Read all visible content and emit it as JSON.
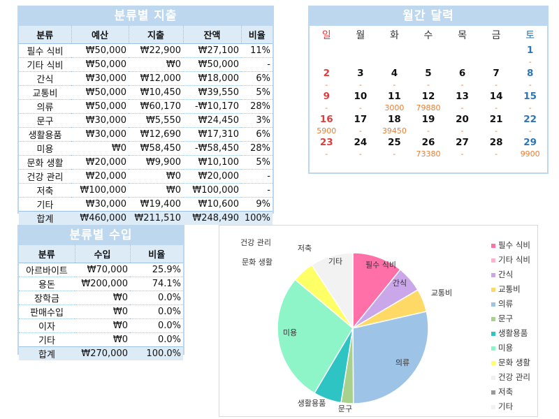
{
  "expense": {
    "title": "분류별 지출",
    "headers": [
      "분류",
      "예산",
      "지출",
      "잔액",
      "비율"
    ],
    "rows": [
      [
        "필수 식비",
        "₩50,000",
        "₩22,900",
        "₩27,100",
        "11%"
      ],
      [
        "기타 식비",
        "₩50,000",
        "₩0",
        "₩50,000",
        "-"
      ],
      [
        "간식",
        "₩30,000",
        "₩12,000",
        "₩18,000",
        "6%"
      ],
      [
        "교통비",
        "₩50,000",
        "₩10,450",
        "₩39,550",
        "5%"
      ],
      [
        "의류",
        "₩50,000",
        "₩60,170",
        "-₩10,170",
        "28%"
      ],
      [
        "문구",
        "₩30,000",
        "₩5,550",
        "₩24,450",
        "3%"
      ],
      [
        "생활용품",
        "₩30,000",
        "₩12,690",
        "₩17,310",
        "6%"
      ],
      [
        "미용",
        "₩0",
        "₩58,450",
        "-₩58,450",
        "28%"
      ],
      [
        "문화 생활",
        "₩20,000",
        "₩9,900",
        "₩10,100",
        "5%"
      ],
      [
        "건강 관리",
        "₩20,000",
        "₩0",
        "₩20,000",
        "-"
      ],
      [
        "저축",
        "₩100,000",
        "₩0",
        "₩100,000",
        "-"
      ],
      [
        "기타",
        "₩30,000",
        "₩19,400",
        "₩10,600",
        "9%"
      ]
    ],
    "total": [
      "합계",
      "₩460,000",
      "₩211,510",
      "₩248,490",
      "100%"
    ]
  },
  "income": {
    "title": "분류별 수입",
    "headers": [
      "분류",
      "수입",
      "비율"
    ],
    "rows": [
      [
        "아르바이트",
        "₩70,000",
        "25.9%"
      ],
      [
        "용돈",
        "₩200,000",
        "74.1%"
      ],
      [
        "장학금",
        "₩0",
        "0.0%"
      ],
      [
        "판매수입",
        "₩0",
        "0.0%"
      ],
      [
        "이자",
        "₩0",
        "0.0%"
      ],
      [
        "기타",
        "₩0",
        "0.0%"
      ]
    ],
    "total": [
      "합계",
      "₩270,000",
      "100.0%"
    ]
  },
  "calendar": {
    "title": "월간 달력",
    "weekdays": [
      "일",
      "월",
      "화",
      "수",
      "목",
      "금",
      "토"
    ],
    "weeks": [
      {
        "days": [
          "",
          "",
          "",
          "",
          "",
          "",
          "1"
        ],
        "amounts": [
          "",
          "",
          "",
          "",
          "",
          "",
          "-"
        ]
      },
      {
        "days": [
          "2",
          "3",
          "4",
          "5",
          "6",
          "7",
          "8"
        ],
        "amounts": [
          "-",
          "-",
          "-",
          "-",
          "-",
          "-",
          "-"
        ]
      },
      {
        "days": [
          "9",
          "10",
          "11",
          "12",
          "13",
          "14",
          "15"
        ],
        "amounts": [
          "-",
          "-",
          "3000",
          "79880",
          "-",
          "-",
          "-"
        ]
      },
      {
        "days": [
          "16",
          "17",
          "18",
          "19",
          "20",
          "21",
          "22"
        ],
        "amounts": [
          "5900",
          "-",
          "39450",
          "-",
          "-",
          "-",
          "-"
        ]
      },
      {
        "days": [
          "23",
          "24",
          "25",
          "26",
          "27",
          "28",
          "29"
        ],
        "amounts": [
          "-",
          "-",
          "-",
          "73380",
          "-",
          "-",
          "9900"
        ]
      }
    ]
  },
  "chart_data": {
    "type": "pie",
    "categories": [
      "필수 식비",
      "기타 식비",
      "간식",
      "교통비",
      "의류",
      "문구",
      "생활용품",
      "미용",
      "문화 생활",
      "건강 관리",
      "저축",
      "기타"
    ],
    "values": [
      22900,
      0,
      12000,
      10450,
      60170,
      5550,
      12690,
      58450,
      9900,
      0,
      0,
      19400
    ],
    "colors": [
      "#ff6fa8",
      "#ffb3d1",
      "#c9a7e8",
      "#ffd966",
      "#9dc3e6",
      "#a9d18e",
      "#2ec4c4",
      "#8ef5c9",
      "#ffff66",
      "#f0f0f0",
      "#999999",
      "#f2f2f2"
    ],
    "legend_position": "right",
    "slice_labels": [
      "필수 식비",
      "기타 식비",
      "간식",
      "교통비",
      "의류",
      "문구",
      "생활용품",
      "미용",
      "문화 생활",
      "건강 관리",
      "저축",
      "기타"
    ]
  }
}
